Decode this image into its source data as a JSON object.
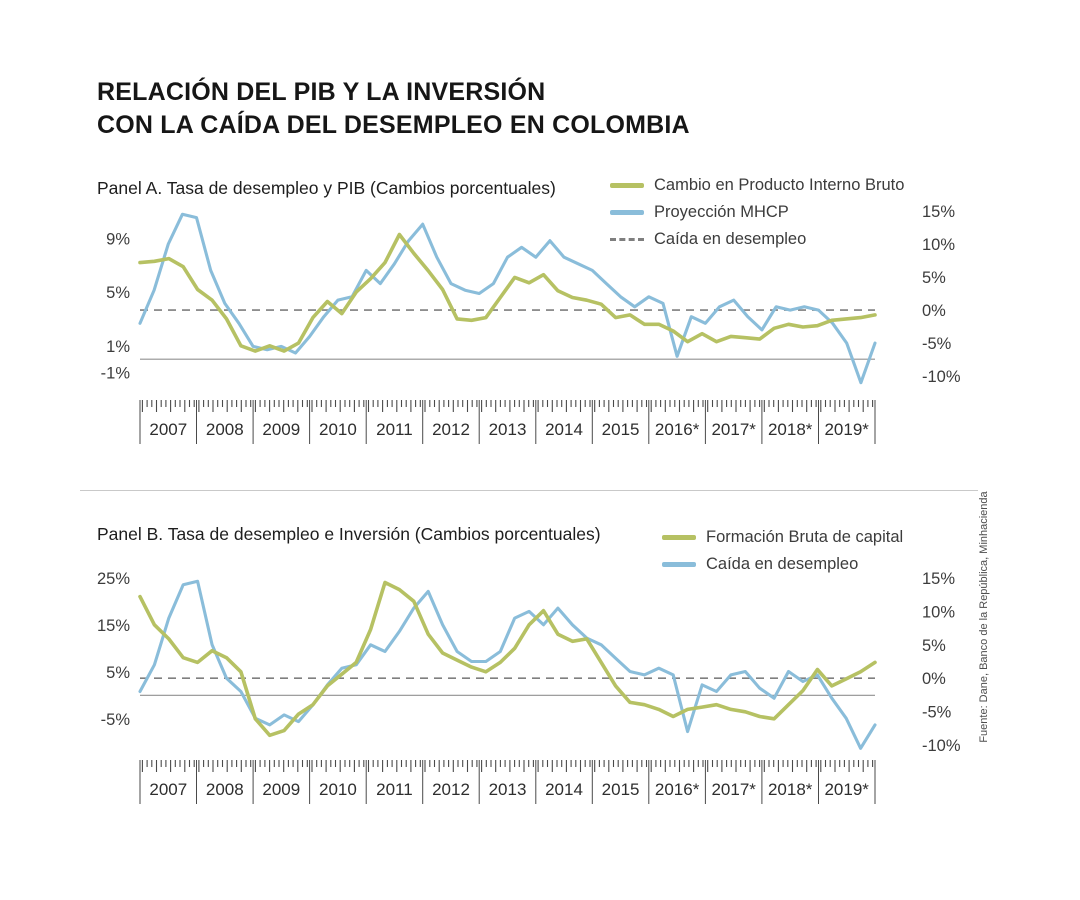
{
  "title": {
    "line1": "RELACIÓN DEL PIB Y LA INVERSIÓN",
    "line2": "CON LA CAÍDA DEL DESEMPLEO EN COLOMBIA"
  },
  "source": "Fuente: Dane, Banco de la República, Minhacienda",
  "colors": {
    "green": "#b6c163",
    "blue": "#8abdda",
    "gray": "#7f7f7f",
    "zero_line": "#909090",
    "axis_text": "#3c3c3c",
    "tick": "#4a4a4a",
    "divider": "#c9c9c9"
  },
  "chart_data": [
    {
      "type": "line",
      "panel_label": "Panel A. Tasa de desempleo y PIB (Cambios porcentuales)",
      "x_frequency": "quarterly",
      "x_years": [
        "2007",
        "2008",
        "2009",
        "2010",
        "2011",
        "2012",
        "2013",
        "2014",
        "2015",
        "2016*",
        "2017*",
        "2018*",
        "2019*"
      ],
      "left_axis": {
        "ticks": [
          "9%",
          "5%",
          "1%",
          "-1%"
        ],
        "tick_values": [
          9,
          5,
          1,
          -1
        ],
        "range": [
          -2.3,
          11.5
        ],
        "unit": "%"
      },
      "right_axis": {
        "ticks": [
          "15%",
          "10%",
          "5%",
          "0%",
          "-5%",
          "-10%"
        ],
        "tick_values": [
          15,
          10,
          5,
          0,
          -5,
          -10
        ],
        "range": [
          -12.1,
          15.9
        ],
        "unit": "%"
      },
      "reference_lines": [
        {
          "axis": "right",
          "value": 0,
          "style": "dashed"
        },
        {
          "axis": "left",
          "value": 0,
          "style": "solid"
        }
      ],
      "legend": [
        {
          "label": "Cambio en Producto Interno Bruto",
          "color": "green",
          "style": "solid"
        },
        {
          "label": "Proyección MHCP",
          "color": "blue",
          "style": "solid"
        },
        {
          "label": "Caída en desempleo",
          "color": "gray",
          "style": "dashed"
        }
      ],
      "series": [
        {
          "name": "Cambio en Producto Interno Bruto",
          "axis": "left",
          "color": "green",
          "values": [
            7.2,
            7.3,
            7.5,
            6.9,
            5.2,
            4.4,
            3.0,
            1.0,
            0.6,
            1.0,
            0.6,
            1.2,
            3.1,
            4.3,
            3.4,
            5.0,
            6.0,
            7.2,
            9.3,
            7.9,
            6.6,
            5.2,
            3.0,
            2.9,
            3.1,
            4.6,
            6.1,
            5.7,
            6.3,
            5.1,
            4.6,
            4.4,
            4.1,
            3.1,
            3.3,
            2.6,
            2.6,
            2.1,
            1.3,
            1.9,
            1.3,
            1.7,
            1.6,
            1.5,
            2.3,
            2.6,
            2.4,
            2.5,
            2.9,
            3.0,
            3.1,
            3.3
          ]
        },
        {
          "name": "Proyección MHCP",
          "axis": "right",
          "color": "blue",
          "values": [
            -2,
            3,
            10,
            14.5,
            14,
            6,
            1,
            -2,
            -5.5,
            -6,
            -5.5,
            -6.5,
            -4,
            -1,
            1.5,
            2,
            6,
            4,
            7,
            10.5,
            13,
            8,
            4,
            3,
            2.5,
            4,
            8,
            9.5,
            8,
            10.5,
            8,
            7,
            6,
            4,
            2,
            0.5,
            2,
            1,
            -7,
            -1,
            -2,
            0.5,
            1.5,
            -1,
            -3,
            0.5,
            0,
            0.5,
            0,
            -2,
            -5,
            -11,
            -5
          ]
        }
      ]
    },
    {
      "type": "line",
      "panel_label": "Panel B. Tasa de desempleo e Inversión (Cambios porcentuales)",
      "x_frequency": "quarterly",
      "x_years": [
        "2007",
        "2008",
        "2009",
        "2010",
        "2011",
        "2012",
        "2013",
        "2014",
        "2015",
        "2016*",
        "2017*",
        "2018*",
        "2019*"
      ],
      "left_axis": {
        "ticks": [
          "25%",
          "15%",
          "5%",
          "-5%"
        ],
        "tick_values": [
          25,
          15,
          5,
          -5
        ],
        "range": [
          -12.7,
          25.6
        ],
        "unit": "%"
      },
      "right_axis": {
        "ticks": [
          "15%",
          "10%",
          "5%",
          "0%",
          "-5%",
          "-10%"
        ],
        "tick_values": [
          15,
          10,
          5,
          0,
          -5,
          -10
        ],
        "range": [
          -11.5,
          15.45
        ],
        "unit": "%"
      },
      "reference_lines": [
        {
          "axis": "right",
          "value": 0,
          "style": "dashed"
        },
        {
          "axis": "left",
          "value": 0,
          "style": "solid"
        }
      ],
      "legend": [
        {
          "label": "Formación Bruta de capital",
          "color": "green",
          "style": "solid"
        },
        {
          "label": "Caída en desempleo",
          "color": "blue",
          "style": "solid"
        }
      ],
      "series": [
        {
          "name": "Formación Bruta de capital",
          "axis": "left",
          "color": "green",
          "values": [
            21,
            15,
            12,
            8,
            7,
            9.5,
            8,
            5,
            -5,
            -8.5,
            -7.5,
            -4,
            -2,
            2,
            4.5,
            7,
            14,
            24,
            22.5,
            20,
            13,
            9,
            7.5,
            6,
            5,
            7,
            10,
            15,
            18,
            13,
            11.5,
            12,
            7,
            2,
            -1.5,
            -2,
            -3,
            -4.5,
            -3,
            -2.5,
            -2,
            -3,
            -3.5,
            -4.5,
            -5,
            -2,
            1,
            5.5,
            2,
            3.5,
            5,
            7
          ]
        },
        {
          "name": "Caída en desempleo",
          "axis": "right",
          "color": "blue",
          "values": [
            -2,
            2,
            9,
            14,
            14.5,
            5,
            0,
            -2,
            -6,
            -7,
            -5.5,
            -6.5,
            -4,
            -1,
            1.5,
            2,
            5,
            4,
            7,
            10.5,
            13,
            8,
            4,
            2.5,
            2.5,
            4,
            9,
            10,
            8,
            10.5,
            8,
            6,
            5,
            3,
            1,
            0.5,
            1.5,
            0.5,
            -8,
            -1,
            -2,
            0.5,
            1,
            -1.5,
            -3,
            1,
            -0.5,
            0.5,
            -3,
            -6,
            -10.5,
            -7
          ]
        }
      ]
    }
  ]
}
